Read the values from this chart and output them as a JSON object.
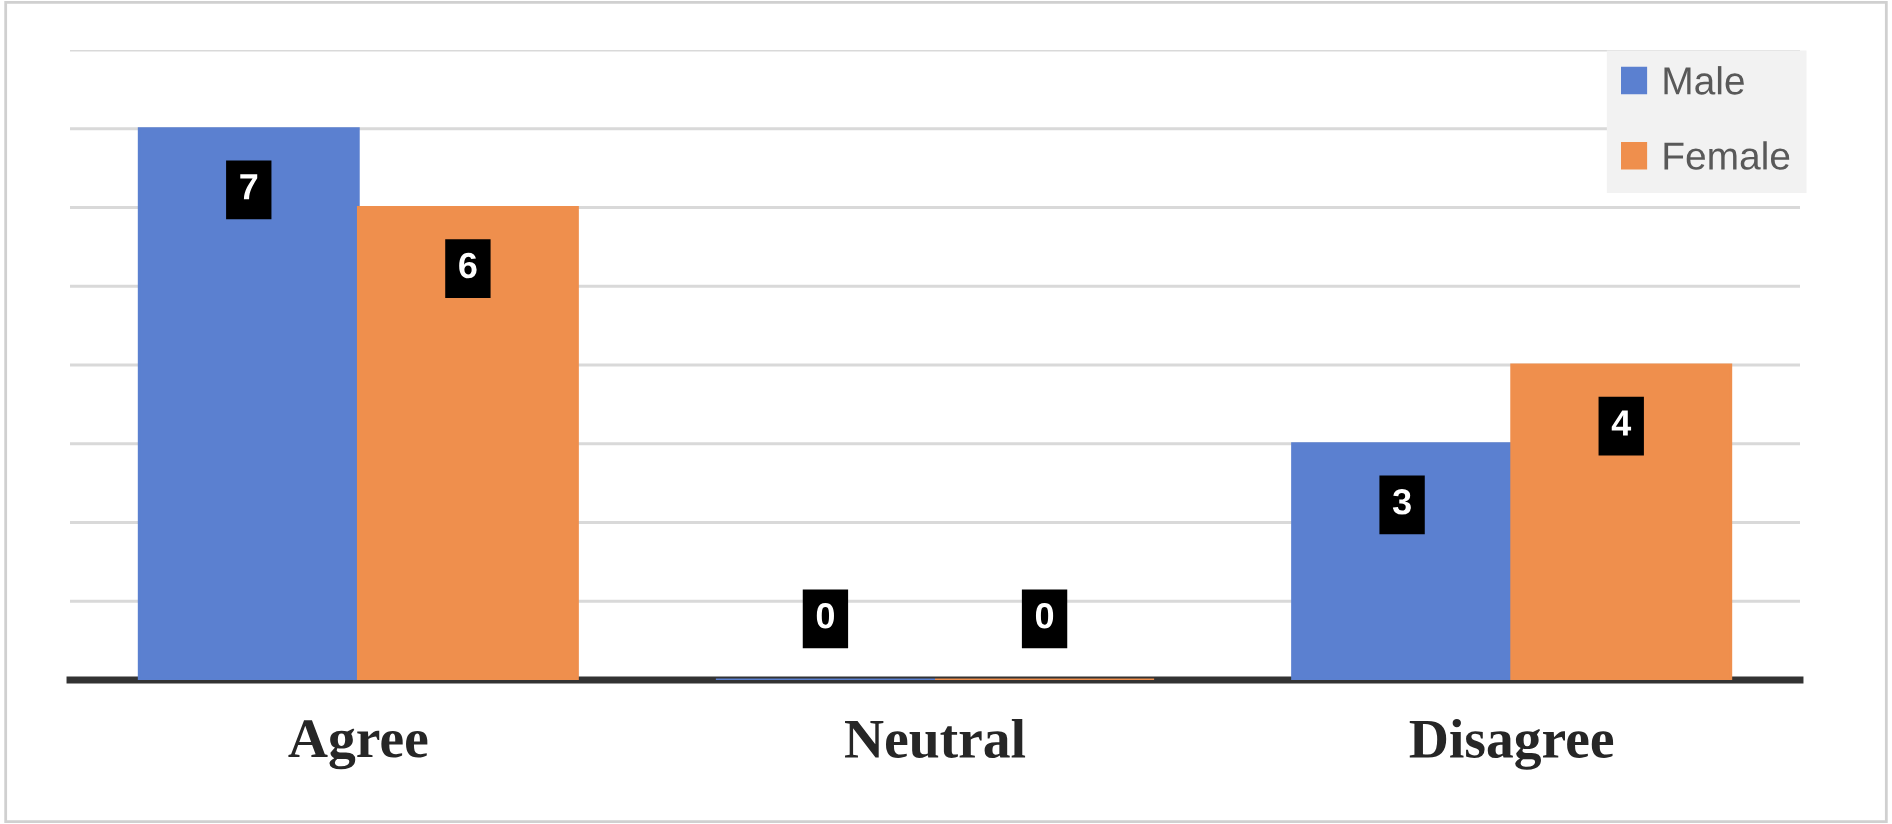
{
  "chart_data": {
    "type": "bar",
    "categories": [
      "Agree",
      "Neutral",
      "Disagree"
    ],
    "series": [
      {
        "name": "Male",
        "color": "#5b80d0",
        "values": [
          7,
          0,
          3
        ]
      },
      {
        "name": "Female",
        "color": "#ef8f4d",
        "values": [
          6,
          0,
          4
        ]
      }
    ],
    "ylim": [
      0,
      8
    ],
    "yticks": [
      {
        "value": 0,
        "label": null
      },
      {
        "value": 1,
        "label": null
      },
      {
        "value": 2,
        "label": null
      },
      {
        "value": 3,
        "label": null
      },
      {
        "value": 4,
        "label": null
      },
      {
        "value": 5,
        "label": null
      },
      {
        "value": 6,
        "label": null
      },
      {
        "value": 7,
        "label": null
      },
      {
        "value": 8,
        "label": null
      }
    ],
    "tick_labels": "x",
    "grid": "y",
    "legend": "top right",
    "data_labels": true
  }
}
